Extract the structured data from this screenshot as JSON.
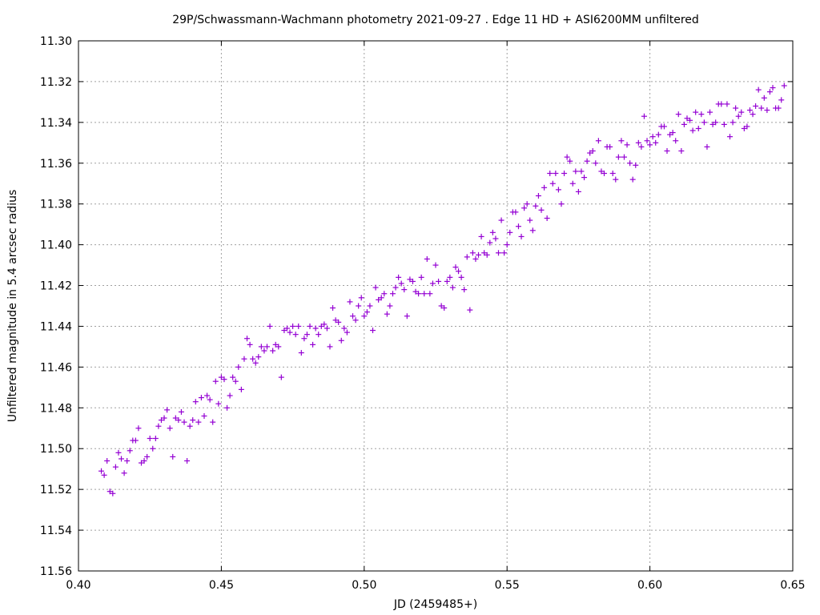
{
  "chart_data": {
    "type": "scatter",
    "title": "29P/Schwassmann-Wachmann photometry 2021-09-27 . Edge 11 HD + ASI6200MM unfiltered",
    "xlabel": "JD (2459485+)",
    "ylabel": "Unfiltered magnitude in 5.4 arcsec radius",
    "xlim": [
      0.4,
      0.65
    ],
    "ylim": [
      11.56,
      11.3
    ],
    "y_inverted": true,
    "grid": true,
    "marker": "plus",
    "color": "#9400d3",
    "xticks": [
      "0.40",
      "0.45",
      "0.50",
      "0.55",
      "0.60",
      "0.65"
    ],
    "yticks": [
      "11.30",
      "11.32",
      "11.34",
      "11.36",
      "11.38",
      "11.40",
      "11.42",
      "11.44",
      "11.46",
      "11.48",
      "11.50",
      "11.52",
      "11.54",
      "11.56"
    ],
    "points": [
      [
        0.408,
        11.511
      ],
      [
        0.409,
        11.513
      ],
      [
        0.41,
        11.506
      ],
      [
        0.411,
        11.521
      ],
      [
        0.412,
        11.522
      ],
      [
        0.413,
        11.509
      ],
      [
        0.414,
        11.502
      ],
      [
        0.415,
        11.505
      ],
      [
        0.416,
        11.512
      ],
      [
        0.417,
        11.506
      ],
      [
        0.418,
        11.501
      ],
      [
        0.419,
        11.496
      ],
      [
        0.42,
        11.496
      ],
      [
        0.421,
        11.49
      ],
      [
        0.422,
        11.507
      ],
      [
        0.423,
        11.506
      ],
      [
        0.424,
        11.504
      ],
      [
        0.425,
        11.495
      ],
      [
        0.426,
        11.5
      ],
      [
        0.427,
        11.495
      ],
      [
        0.428,
        11.489
      ],
      [
        0.429,
        11.486
      ],
      [
        0.43,
        11.485
      ],
      [
        0.431,
        11.481
      ],
      [
        0.432,
        11.49
      ],
      [
        0.433,
        11.504
      ],
      [
        0.434,
        11.485
      ],
      [
        0.435,
        11.486
      ],
      [
        0.436,
        11.482
      ],
      [
        0.437,
        11.487
      ],
      [
        0.438,
        11.506
      ],
      [
        0.439,
        11.489
      ],
      [
        0.44,
        11.486
      ],
      [
        0.441,
        11.477
      ],
      [
        0.442,
        11.487
      ],
      [
        0.443,
        11.475
      ],
      [
        0.444,
        11.484
      ],
      [
        0.445,
        11.474
      ],
      [
        0.446,
        11.476
      ],
      [
        0.447,
        11.487
      ],
      [
        0.448,
        11.467
      ],
      [
        0.449,
        11.478
      ],
      [
        0.45,
        11.465
      ],
      [
        0.451,
        11.466
      ],
      [
        0.452,
        11.48
      ],
      [
        0.453,
        11.474
      ],
      [
        0.454,
        11.465
      ],
      [
        0.455,
        11.467
      ],
      [
        0.456,
        11.46
      ],
      [
        0.457,
        11.471
      ],
      [
        0.458,
        11.456
      ],
      [
        0.459,
        11.446
      ],
      [
        0.46,
        11.449
      ],
      [
        0.461,
        11.456
      ],
      [
        0.462,
        11.458
      ],
      [
        0.463,
        11.455
      ],
      [
        0.464,
        11.45
      ],
      [
        0.465,
        11.452
      ],
      [
        0.466,
        11.45
      ],
      [
        0.467,
        11.44
      ],
      [
        0.468,
        11.452
      ],
      [
        0.469,
        11.449
      ],
      [
        0.47,
        11.45
      ],
      [
        0.471,
        11.465
      ],
      [
        0.472,
        11.442
      ],
      [
        0.473,
        11.441
      ],
      [
        0.474,
        11.443
      ],
      [
        0.475,
        11.44
      ],
      [
        0.476,
        11.444
      ],
      [
        0.477,
        11.44
      ],
      [
        0.478,
        11.453
      ],
      [
        0.479,
        11.446
      ],
      [
        0.48,
        11.444
      ],
      [
        0.481,
        11.44
      ],
      [
        0.482,
        11.449
      ],
      [
        0.483,
        11.441
      ],
      [
        0.484,
        11.444
      ],
      [
        0.485,
        11.44
      ],
      [
        0.486,
        11.439
      ],
      [
        0.487,
        11.441
      ],
      [
        0.488,
        11.45
      ],
      [
        0.489,
        11.431
      ],
      [
        0.49,
        11.437
      ],
      [
        0.491,
        11.438
      ],
      [
        0.492,
        11.447
      ],
      [
        0.493,
        11.441
      ],
      [
        0.494,
        11.443
      ],
      [
        0.495,
        11.428
      ],
      [
        0.496,
        11.435
      ],
      [
        0.497,
        11.437
      ],
      [
        0.498,
        11.43
      ],
      [
        0.499,
        11.426
      ],
      [
        0.5,
        11.435
      ],
      [
        0.501,
        11.433
      ],
      [
        0.502,
        11.43
      ],
      [
        0.503,
        11.442
      ],
      [
        0.504,
        11.421
      ],
      [
        0.505,
        11.427
      ],
      [
        0.506,
        11.426
      ],
      [
        0.507,
        11.424
      ],
      [
        0.508,
        11.434
      ],
      [
        0.509,
        11.43
      ],
      [
        0.51,
        11.424
      ],
      [
        0.511,
        11.421
      ],
      [
        0.512,
        11.416
      ],
      [
        0.513,
        11.419
      ],
      [
        0.514,
        11.422
      ],
      [
        0.515,
        11.435
      ],
      [
        0.516,
        11.417
      ],
      [
        0.517,
        11.418
      ],
      [
        0.518,
        11.423
      ],
      [
        0.519,
        11.424
      ],
      [
        0.52,
        11.416
      ],
      [
        0.521,
        11.424
      ],
      [
        0.522,
        11.407
      ],
      [
        0.523,
        11.424
      ],
      [
        0.524,
        11.419
      ],
      [
        0.525,
        11.41
      ],
      [
        0.526,
        11.418
      ],
      [
        0.527,
        11.43
      ],
      [
        0.528,
        11.431
      ],
      [
        0.529,
        11.418
      ],
      [
        0.53,
        11.416
      ],
      [
        0.531,
        11.421
      ],
      [
        0.532,
        11.411
      ],
      [
        0.533,
        11.413
      ],
      [
        0.534,
        11.416
      ],
      [
        0.535,
        11.422
      ],
      [
        0.536,
        11.406
      ],
      [
        0.537,
        11.432
      ],
      [
        0.538,
        11.404
      ],
      [
        0.539,
        11.407
      ],
      [
        0.54,
        11.405
      ],
      [
        0.541,
        11.396
      ],
      [
        0.542,
        11.404
      ],
      [
        0.543,
        11.405
      ],
      [
        0.544,
        11.399
      ],
      [
        0.545,
        11.394
      ],
      [
        0.546,
        11.397
      ],
      [
        0.547,
        11.404
      ],
      [
        0.548,
        11.388
      ],
      [
        0.549,
        11.404
      ],
      [
        0.55,
        11.4
      ],
      [
        0.551,
        11.394
      ],
      [
        0.552,
        11.384
      ],
      [
        0.553,
        11.384
      ],
      [
        0.554,
        11.391
      ],
      [
        0.555,
        11.396
      ],
      [
        0.556,
        11.382
      ],
      [
        0.557,
        11.38
      ],
      [
        0.558,
        11.388
      ],
      [
        0.559,
        11.393
      ],
      [
        0.56,
        11.381
      ],
      [
        0.561,
        11.376
      ],
      [
        0.562,
        11.383
      ],
      [
        0.563,
        11.372
      ],
      [
        0.564,
        11.387
      ],
      [
        0.565,
        11.365
      ],
      [
        0.566,
        11.37
      ],
      [
        0.567,
        11.365
      ],
      [
        0.568,
        11.373
      ],
      [
        0.569,
        11.38
      ],
      [
        0.57,
        11.365
      ],
      [
        0.571,
        11.357
      ],
      [
        0.572,
        11.359
      ],
      [
        0.573,
        11.37
      ],
      [
        0.574,
        11.364
      ],
      [
        0.575,
        11.374
      ],
      [
        0.576,
        11.364
      ],
      [
        0.577,
        11.367
      ],
      [
        0.578,
        11.359
      ],
      [
        0.579,
        11.355
      ],
      [
        0.58,
        11.354
      ],
      [
        0.581,
        11.36
      ],
      [
        0.582,
        11.349
      ],
      [
        0.583,
        11.364
      ],
      [
        0.584,
        11.365
      ],
      [
        0.585,
        11.352
      ],
      [
        0.586,
        11.352
      ],
      [
        0.587,
        11.365
      ],
      [
        0.588,
        11.368
      ],
      [
        0.589,
        11.357
      ],
      [
        0.59,
        11.349
      ],
      [
        0.591,
        11.357
      ],
      [
        0.592,
        11.351
      ],
      [
        0.593,
        11.36
      ],
      [
        0.594,
        11.368
      ],
      [
        0.595,
        11.361
      ],
      [
        0.596,
        11.35
      ],
      [
        0.597,
        11.352
      ],
      [
        0.598,
        11.337
      ],
      [
        0.599,
        11.349
      ],
      [
        0.6,
        11.351
      ],
      [
        0.601,
        11.347
      ],
      [
        0.602,
        11.35
      ],
      [
        0.603,
        11.346
      ],
      [
        0.604,
        11.342
      ],
      [
        0.605,
        11.342
      ],
      [
        0.606,
        11.354
      ],
      [
        0.607,
        11.346
      ],
      [
        0.608,
        11.345
      ],
      [
        0.609,
        11.349
      ],
      [
        0.61,
        11.336
      ],
      [
        0.611,
        11.354
      ],
      [
        0.612,
        11.341
      ],
      [
        0.613,
        11.338
      ],
      [
        0.614,
        11.339
      ],
      [
        0.615,
        11.344
      ],
      [
        0.616,
        11.335
      ],
      [
        0.617,
        11.343
      ],
      [
        0.618,
        11.336
      ],
      [
        0.619,
        11.34
      ],
      [
        0.62,
        11.352
      ],
      [
        0.621,
        11.335
      ],
      [
        0.622,
        11.341
      ],
      [
        0.623,
        11.34
      ],
      [
        0.624,
        11.331
      ],
      [
        0.625,
        11.331
      ],
      [
        0.626,
        11.341
      ],
      [
        0.627,
        11.331
      ],
      [
        0.628,
        11.347
      ],
      [
        0.629,
        11.34
      ],
      [
        0.63,
        11.333
      ],
      [
        0.631,
        11.337
      ],
      [
        0.632,
        11.335
      ],
      [
        0.633,
        11.343
      ],
      [
        0.634,
        11.342
      ],
      [
        0.635,
        11.334
      ],
      [
        0.636,
        11.336
      ],
      [
        0.637,
        11.332
      ],
      [
        0.638,
        11.324
      ],
      [
        0.639,
        11.333
      ],
      [
        0.64,
        11.328
      ],
      [
        0.641,
        11.334
      ],
      [
        0.642,
        11.325
      ],
      [
        0.643,
        11.323
      ],
      [
        0.644,
        11.333
      ],
      [
        0.645,
        11.333
      ],
      [
        0.646,
        11.329
      ],
      [
        0.647,
        11.322
      ]
    ]
  }
}
